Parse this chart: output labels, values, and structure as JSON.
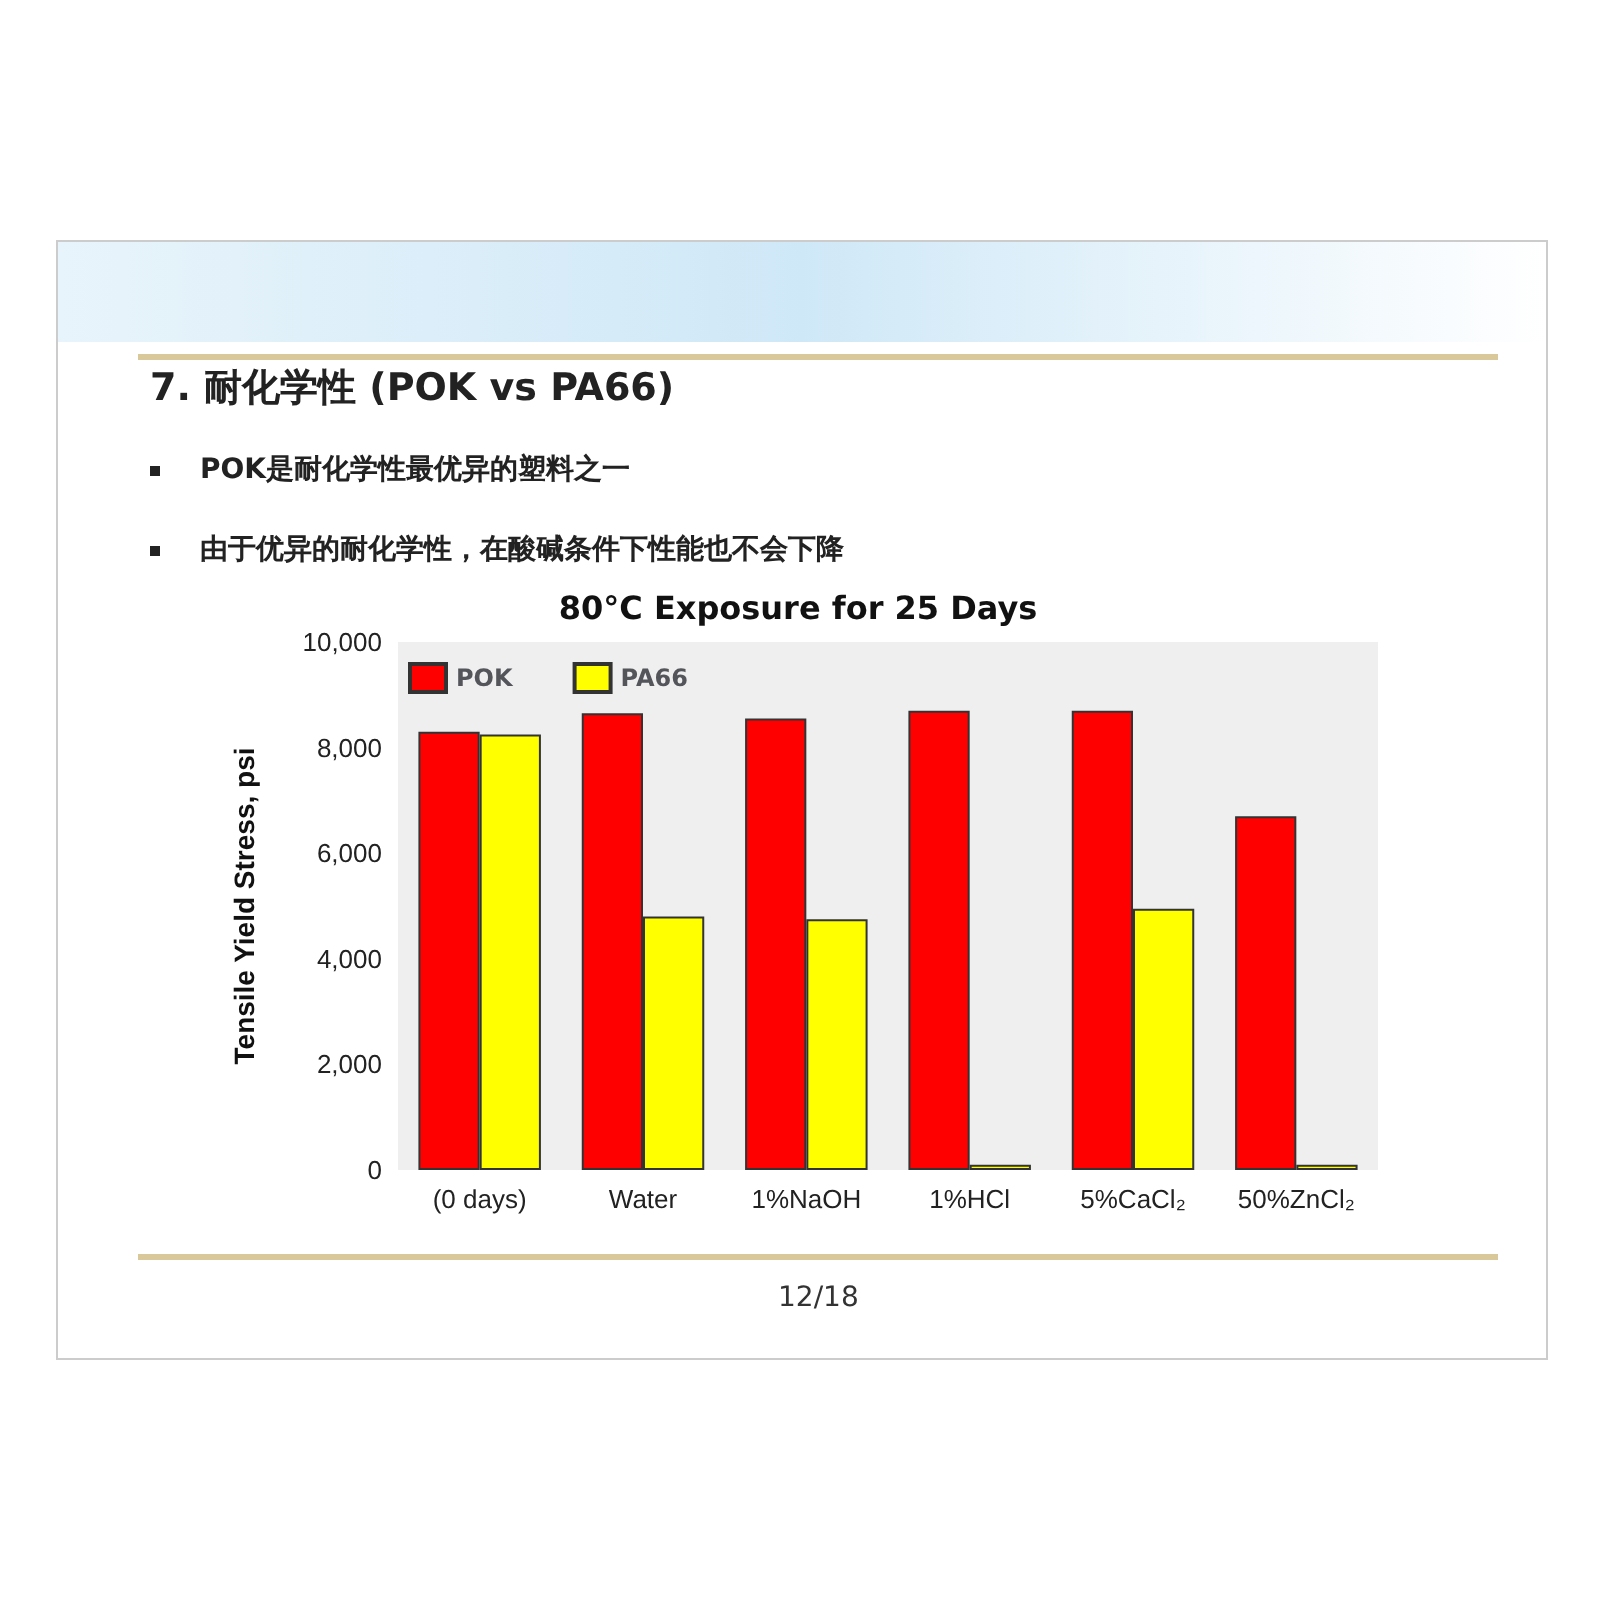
{
  "chart_data": {
    "type": "bar",
    "title": "80°C Exposure for 25 Days",
    "ylabel": "Tensile Yield Stress, psi",
    "annotations": [
      "7. 耐化学性  (POK vs PA66)",
      "POK是耐化学性最优异的塑料之一",
      "由于优异的耐化学性，在酸碱条件下性能也不会下降",
      "12/18"
    ],
    "categories": [
      "(0 days)",
      "Water",
      "1%NaOH",
      "1%HCl",
      "5%CaCl₂",
      "50%ZnCl₂"
    ],
    "series": [
      {
        "name": "POK",
        "color": "#ff0000",
        "values": [
          8300,
          8650,
          8550,
          8700,
          8700,
          6700
        ]
      },
      {
        "name": "PA66",
        "color": "#ffff00",
        "values": [
          8250,
          4800,
          4750,
          100,
          4950,
          100
        ]
      }
    ],
    "ylim": [
      0,
      10000
    ],
    "yticks": [
      0,
      {
        "value": 2000,
        "label": "2,000"
      },
      {
        "value": 4000,
        "label": "4,000"
      },
      {
        "value": 6000,
        "label": "6,000"
      },
      {
        "value": 8000,
        "label": "8,000"
      },
      {
        "value": 10000,
        "label": "10,000"
      }
    ],
    "grid": false,
    "legend": "top left"
  }
}
